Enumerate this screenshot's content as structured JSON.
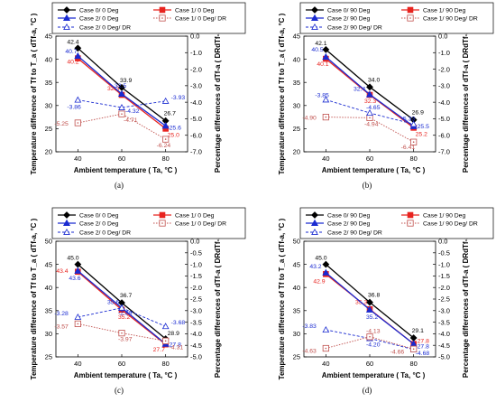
{
  "figure": {
    "colors": {
      "black": "#000000",
      "red": "#e8231f",
      "blue": "#1a2bd1",
      "dred": "#c0504d",
      "dblue": "#1a2bd1"
    }
  },
  "chart_data": [
    {
      "type": "line",
      "panel": "(a)",
      "xlabel": "Ambient temperature ( T_a, °C )",
      "ylabel": "Temperature difference of T_f to T_a ( dT_f-a, °C )",
      "y2label": "Percentage differences of dT_f-a ( DR_dTf-a, % )",
      "x": [
        40,
        60,
        80
      ],
      "xticks": [
        "40",
        "60",
        "80"
      ],
      "ylim": [
        20,
        45
      ],
      "yticks": [
        "20",
        "25",
        "30",
        "35",
        "40",
        "45"
      ],
      "y2lim": [
        -7.0,
        0.0
      ],
      "y2ticks": [
        "-7.0",
        "-6.0",
        "-5.0",
        "-4.0",
        "-3.0",
        "-2.0",
        "-1.0",
        "0.0"
      ],
      "series": [
        {
          "name": "Case 0/ 0 Deg",
          "axis": "left",
          "values": [
            42.4,
            33.9,
            26.7
          ],
          "labels": [
            "42.4",
            "33.9",
            "26.7"
          ]
        },
        {
          "name": "Case 1/ 0 Deg",
          "axis": "left",
          "values": [
            40.2,
            32.3,
            25.0
          ],
          "labels": [
            "40.2",
            "32.3",
            "25.0"
          ]
        },
        {
          "name": "Case 2/ 0 Deg",
          "axis": "left",
          "values": [
            40.7,
            32.5,
            25.6
          ],
          "labels": [
            "40.7",
            "32.5",
            "25.6"
          ]
        },
        {
          "name": "Case 1/ 0 Deg/ DR",
          "axis": "right",
          "values": [
            -5.25,
            -4.71,
            -6.24
          ],
          "labels": [
            "-5.25",
            "-4.71",
            "-6.24"
          ]
        },
        {
          "name": "Case 2/ 0 Deg/ DR",
          "axis": "right",
          "values": [
            -3.86,
            -4.32,
            -3.93
          ],
          "labels": [
            "-3.86",
            "-4.32",
            "-3.93"
          ]
        }
      ]
    },
    {
      "type": "line",
      "panel": "(b)",
      "xlabel": "Ambient temperature ( T_a, °C )",
      "ylabel": "Temperature difference of T_f to T_a ( dT_f-a, °C )",
      "y2label": "Percentage differences of dT_f-a ( DR_dTf-a, % )",
      "x": [
        40,
        60,
        80
      ],
      "xticks": [
        "40",
        "60",
        "80"
      ],
      "ylim": [
        20,
        45
      ],
      "yticks": [
        "20",
        "25",
        "30",
        "35",
        "40",
        "45"
      ],
      "y2lim": [
        -7.0,
        0.0
      ],
      "y2ticks": [
        "-7.0",
        "-6.0",
        "-5.0",
        "-4.0",
        "-3.0",
        "-2.0",
        "-1.0",
        "0.0"
      ],
      "series": [
        {
          "name": "Case 0/ 90 Deg",
          "axis": "left",
          "values": [
            42.1,
            34.0,
            26.9
          ],
          "labels": [
            "42.1",
            "34.0",
            "26.9"
          ]
        },
        {
          "name": "Case 1/ 90 Deg",
          "axis": "left",
          "values": [
            40.1,
            32.3,
            25.2
          ],
          "labels": [
            "40.1",
            "32.3",
            "25.2"
          ]
        },
        {
          "name": "Case 2/ 90 Deg",
          "axis": "left",
          "values": [
            40.5,
            32.4,
            25.5
          ],
          "labels": [
            "40.5",
            "32.4",
            "25.5"
          ]
        },
        {
          "name": "Case 1/ 90 Deg/ DR",
          "axis": "right",
          "values": [
            -4.9,
            -4.94,
            -6.41
          ],
          "labels": [
            "-4.90",
            "-4.94",
            "-6.41"
          ]
        },
        {
          "name": "Case 2/ 90 Deg/ DR",
          "axis": "right",
          "values": [
            -3.85,
            -4.65,
            -5.33
          ],
          "labels": [
            "-3.85",
            "-4.65",
            "-5.33"
          ]
        }
      ]
    },
    {
      "type": "line",
      "panel": "(c)",
      "xlabel": "Ambient temperature ( T_a, °C )",
      "ylabel": "Temperature difference of T_f to T_a ( dT_f-a, °C )",
      "y2label": "Percentage differences of dT_f-a ( DR_dTf-a, % )",
      "x": [
        40,
        60,
        80
      ],
      "xticks": [
        "40",
        "60",
        "80"
      ],
      "ylim": [
        25,
        50
      ],
      "yticks": [
        "25",
        "30",
        "35",
        "40",
        "45",
        "50"
      ],
      "y2lim": [
        -5.0,
        0.0
      ],
      "y2ticks": [
        "-5.0",
        "-4.5",
        "-4.0",
        "-3.5",
        "-3.0",
        "-2.5",
        "-2.0",
        "-1.5",
        "-1.0",
        "-0.5",
        "0.0"
      ],
      "series": [
        {
          "name": "Case 0/ 0 Deg",
          "axis": "left",
          "values": [
            45.0,
            36.7,
            28.9
          ],
          "labels": [
            "45.0",
            "36.7",
            "28.9"
          ]
        },
        {
          "name": "Case 1/ 0 Deg",
          "axis": "left",
          "values": [
            43.4,
            35.2,
            27.7
          ],
          "labels": [
            "43.4",
            "35.2",
            "27.7"
          ]
        },
        {
          "name": "Case 2/ 0 Deg",
          "axis": "left",
          "values": [
            43.6,
            35.6,
            27.8
          ],
          "labels": [
            "43.6",
            "35.6",
            "27.8"
          ]
        },
        {
          "name": "Case 2/ 0 Deg/ DR",
          "axis": "right",
          "values": [
            -3.28,
            -2.88,
            -3.68
          ],
          "labels": [
            "-3.28",
            "-2.88",
            "-3.68"
          ]
        },
        {
          "name": "Case 1/ 0 Deg/ DR",
          "axis": "right",
          "values": [
            -3.57,
            -3.97,
            -4.31
          ],
          "labels": [
            "-3.57",
            "-3.97",
            "-4.31"
          ]
        }
      ]
    },
    {
      "type": "line",
      "panel": "(d)",
      "xlabel": "Ambient temperature ( T_a, °C )",
      "ylabel": "Temperature difference of T_f to T_a ( dT_f-a, °C )",
      "y2label": "Percentage differences of dT_f-a ( DR_dTf-a, % )",
      "x": [
        40,
        60,
        80
      ],
      "xticks": [
        "40",
        "60",
        "80"
      ],
      "ylim": [
        25,
        50
      ],
      "yticks": [
        "25",
        "30",
        "35",
        "40",
        "45",
        "50"
      ],
      "y2lim": [
        -5.0,
        0.0
      ],
      "y2ticks": [
        "-5.0",
        "-4.5",
        "-4.0",
        "-3.5",
        "-3.0",
        "-2.5",
        "-2.0",
        "-1.5",
        "-1.0",
        "-0.5",
        "0.0"
      ],
      "series": [
        {
          "name": "Case 0/ 90 Deg",
          "axis": "left",
          "values": [
            45.0,
            36.8,
            29.1
          ],
          "labels": [
            "45.0",
            "36.8",
            "29.1"
          ]
        },
        {
          "name": "Case 1/ 90 Deg",
          "axis": "left",
          "values": [
            42.9,
            35.3,
            27.8
          ],
          "labels": [
            "42.9",
            "35.3",
            "27.8"
          ]
        },
        {
          "name": "Case 2/ 90 Deg",
          "axis": "left",
          "values": [
            43.2,
            35.2,
            27.8
          ],
          "labels": [
            "43.2",
            "35.2",
            "27.8"
          ]
        },
        {
          "name": "Case 2/ 90 Deg/ DR",
          "axis": "right",
          "values": [
            -3.83,
            -4.2,
            -4.68
          ],
          "labels": [
            "-3.83",
            "-4.20",
            "-4.68"
          ]
        },
        {
          "name": "Case 1/ 90 Deg/ DR",
          "axis": "right",
          "values": [
            -4.63,
            -4.13,
            -4.66
          ],
          "labels": [
            "-4.63",
            "-4.13",
            "-4.66"
          ]
        }
      ]
    }
  ]
}
